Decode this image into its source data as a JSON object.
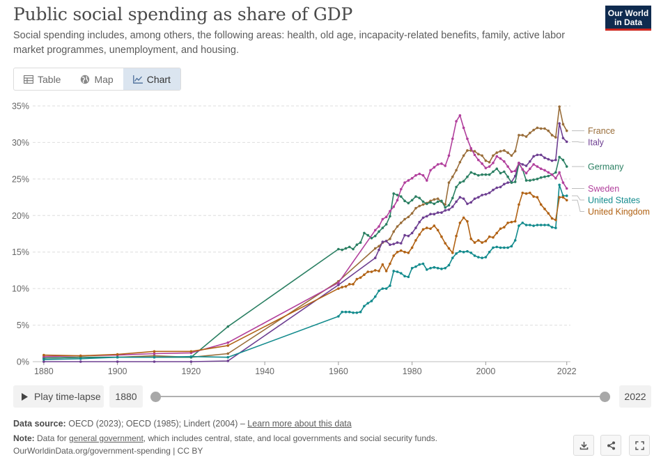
{
  "header": {
    "title": "Public social spending as share of GDP",
    "subtitle": "Social spending includes, among others, the following areas: health, old age, incapacity-related benefits, family, active labor market programmes, unemployment, and housing.",
    "logo_line1": "Our World",
    "logo_line2": "in Data"
  },
  "tabs": [
    {
      "label": "Table",
      "icon": "table-icon",
      "active": false
    },
    {
      "label": "Map",
      "icon": "globe-icon",
      "active": false
    },
    {
      "label": "Chart",
      "icon": "line-chart-icon",
      "active": true
    }
  ],
  "controls": {
    "play_label": "Play time-lapse",
    "start_year": "1880",
    "end_year": "2022"
  },
  "footer": {
    "source_prefix": "Data source:",
    "source_text": "OECD (2023); OECD (1985); Lindert (2004) –",
    "source_link": "Learn more about this data",
    "note_prefix": "Note:",
    "note_text_1": "Data for",
    "note_link": "general government",
    "note_text_2": ", which includes central, state, and local governments and social security funds.",
    "url_line": "OurWorldinData.org/government-spending | CC BY"
  },
  "buttons": {
    "download_icon": "download-icon",
    "share_icon": "share-icon",
    "fullscreen_icon": "fullscreen-icon"
  },
  "chart_data": {
    "type": "line",
    "title": "Public social spending as share of GDP",
    "xlim": [
      1877,
      2023
    ],
    "ylim": [
      0,
      35
    ],
    "xticks": [
      1880,
      1900,
      1920,
      1940,
      1960,
      1980,
      2000,
      2022
    ],
    "yticks": [
      0,
      5,
      10,
      15,
      20,
      25,
      30,
      35
    ],
    "ytick_labels": [
      "0%",
      "5%",
      "10%",
      "15%",
      "20%",
      "25%",
      "30%",
      "35%"
    ],
    "grid": "horizontal dashed",
    "legend_placement": "right, end-labels",
    "series": [
      {
        "name": "France",
        "color": "#996d39",
        "x": [
          1880,
          1890,
          1900,
          1910,
          1920,
          1930,
          1960,
          1970,
          1971,
          1972,
          1973,
          1974,
          1975,
          1976,
          1977,
          1978,
          1979,
          1980,
          1981,
          1982,
          1983,
          1984,
          1985,
          1986,
          1987,
          1988,
          1989,
          1990,
          1991,
          1992,
          1993,
          1994,
          1995,
          1996,
          1997,
          1998,
          1999,
          2000,
          2001,
          2002,
          2003,
          2004,
          2005,
          2006,
          2007,
          2008,
          2009,
          2010,
          2011,
          2012,
          2013,
          2014,
          2015,
          2016,
          2017,
          2018,
          2019,
          2020,
          2021,
          2022
        ],
        "y": [
          0.5,
          0.6,
          0.6,
          0.8,
          0.6,
          1.1,
          11.0,
          15.5,
          15.8,
          16.3,
          16.5,
          16.8,
          17.8,
          18.5,
          19.0,
          19.5,
          19.8,
          20.3,
          21.0,
          21.3,
          21.5,
          21.7,
          22.0,
          22.2,
          22.3,
          21.9,
          21.5,
          24.5,
          25.3,
          26.2,
          27.3,
          28.2,
          28.9,
          28.9,
          28.8,
          28.4,
          28.2,
          27.5,
          27.3,
          28.2,
          28.6,
          28.8,
          28.9,
          28.6,
          28.2,
          28.8,
          31.0,
          31.0,
          30.8,
          31.3,
          31.7,
          32.0,
          31.9,
          31.9,
          31.6,
          31.0,
          30.7,
          34.9,
          32.5,
          31.6
        ]
      },
      {
        "name": "Italy",
        "color": "#6d3e91",
        "x": [
          1880,
          1890,
          1900,
          1910,
          1920,
          1930,
          1960,
          1970,
          1971,
          1972,
          1973,
          1974,
          1975,
          1976,
          1977,
          1978,
          1979,
          1980,
          1981,
          1982,
          1983,
          1984,
          1985,
          1986,
          1987,
          1988,
          1989,
          1990,
          1991,
          1992,
          1993,
          1994,
          1995,
          1996,
          1997,
          1998,
          1999,
          2000,
          2001,
          2002,
          2003,
          2004,
          2005,
          2006,
          2007,
          2008,
          2009,
          2010,
          2011,
          2012,
          2013,
          2014,
          2015,
          2016,
          2017,
          2018,
          2019,
          2020,
          2021,
          2022
        ],
        "y": [
          0.0,
          0.0,
          0.0,
          0.0,
          0.0,
          0.1,
          10.5,
          14.2,
          15.3,
          16.4,
          16.5,
          16.0,
          16.1,
          16.3,
          16.2,
          17.3,
          17.2,
          17.6,
          18.3,
          19.1,
          19.7,
          19.9,
          20.2,
          20.2,
          20.4,
          20.4,
          20.7,
          20.8,
          21.2,
          21.9,
          22.5,
          22.3,
          21.6,
          21.8,
          22.3,
          22.5,
          22.8,
          22.9,
          23.1,
          23.5,
          23.8,
          23.9,
          24.3,
          24.5,
          24.6,
          25.4,
          27.2,
          27.0,
          26.8,
          27.4,
          28.1,
          28.3,
          28.3,
          27.9,
          27.7,
          27.5,
          27.6,
          32.6,
          30.6,
          30.1
        ]
      },
      {
        "name": "Germany",
        "color": "#2a7f62",
        "x": [
          1880,
          1890,
          1900,
          1910,
          1920,
          1930,
          1960,
          1961,
          1962,
          1963,
          1964,
          1965,
          1966,
          1967,
          1968,
          1969,
          1970,
          1971,
          1972,
          1973,
          1974,
          1975,
          1976,
          1977,
          1978,
          1979,
          1980,
          1981,
          1982,
          1983,
          1984,
          1985,
          1986,
          1987,
          1988,
          1989,
          1990,
          1991,
          1992,
          1993,
          1994,
          1995,
          1996,
          1997,
          1998,
          1999,
          2000,
          2001,
          2002,
          2003,
          2004,
          2005,
          2006,
          2007,
          2008,
          2009,
          2010,
          2011,
          2012,
          2013,
          2014,
          2015,
          2016,
          2017,
          2018,
          2019,
          2020,
          2021,
          2022
        ],
        "y": [
          0.5,
          0.6,
          0.6,
          0.6,
          0.6,
          4.8,
          15.4,
          15.3,
          15.5,
          15.7,
          15.4,
          16.0,
          16.3,
          17.6,
          17.3,
          16.9,
          17.2,
          17.8,
          18.3,
          18.8,
          19.9,
          23.0,
          22.8,
          22.6,
          22.0,
          21.7,
          22.1,
          22.6,
          22.4,
          21.9,
          21.6,
          21.8,
          21.6,
          21.9,
          22.0,
          21.1,
          21.4,
          22.4,
          23.9,
          24.5,
          24.7,
          25.3,
          25.9,
          25.7,
          25.5,
          25.6,
          25.6,
          25.6,
          26.0,
          26.4,
          25.8,
          26.0,
          25.3,
          24.5,
          24.6,
          27.1,
          26.3,
          24.8,
          24.8,
          24.9,
          25.0,
          25.2,
          25.3,
          25.4,
          25.6,
          25.9,
          28.0,
          27.6,
          26.7
        ]
      },
      {
        "name": "Sweden",
        "color": "#b13f9c",
        "x": [
          1880,
          1890,
          1900,
          1910,
          1920,
          1930,
          1960,
          1970,
          1971,
          1972,
          1973,
          1974,
          1975,
          1976,
          1977,
          1978,
          1979,
          1980,
          1981,
          1982,
          1983,
          1984,
          1985,
          1986,
          1987,
          1988,
          1989,
          1990,
          1991,
          1992,
          1993,
          1994,
          1995,
          1996,
          1997,
          1998,
          1999,
          2000,
          2001,
          2002,
          2003,
          2004,
          2005,
          2006,
          2007,
          2008,
          2009,
          2010,
          2011,
          2012,
          2013,
          2014,
          2015,
          2016,
          2017,
          2018,
          2019,
          2020,
          2021,
          2022
        ],
        "y": [
          0.7,
          0.8,
          0.9,
          1.1,
          1.2,
          2.6,
          10.8,
          18.0,
          18.5,
          19.5,
          19.8,
          20.6,
          21.2,
          22.1,
          23.6,
          24.5,
          24.8,
          25.1,
          25.5,
          25.7,
          25.5,
          24.8,
          26.2,
          26.6,
          27.0,
          27.1,
          26.8,
          28.2,
          30.5,
          32.9,
          33.7,
          32.0,
          30.5,
          29.2,
          28.3,
          27.6,
          27.1,
          26.5,
          26.7,
          27.2,
          28.1,
          27.8,
          27.4,
          26.7,
          26.0,
          26.1,
          27.2,
          26.3,
          25.8,
          26.4,
          27.0,
          26.7,
          26.4,
          26.2,
          25.9,
          25.6,
          25.1,
          25.9,
          24.5,
          23.7
        ]
      },
      {
        "name": "United States",
        "color": "#138b8d",
        "x": [
          1880,
          1890,
          1900,
          1910,
          1920,
          1930,
          1960,
          1961,
          1962,
          1963,
          1964,
          1965,
          1966,
          1967,
          1968,
          1969,
          1970,
          1971,
          1972,
          1973,
          1974,
          1975,
          1976,
          1977,
          1978,
          1979,
          1980,
          1981,
          1982,
          1983,
          1984,
          1985,
          1986,
          1987,
          1988,
          1989,
          1990,
          1991,
          1992,
          1993,
          1994,
          1995,
          1996,
          1997,
          1998,
          1999,
          2000,
          2001,
          2002,
          2003,
          2004,
          2005,
          2006,
          2007,
          2008,
          2009,
          2010,
          2011,
          2012,
          2013,
          2014,
          2015,
          2016,
          2017,
          2018,
          2019,
          2020,
          2021,
          2022
        ],
        "y": [
          0.3,
          0.4,
          0.6,
          0.6,
          0.7,
          0.6,
          6.2,
          6.8,
          6.8,
          6.8,
          6.7,
          6.7,
          6.8,
          7.6,
          8.0,
          8.3,
          8.9,
          9.7,
          10.0,
          10.0,
          10.4,
          12.4,
          12.3,
          12.1,
          11.7,
          11.6,
          12.8,
          13.0,
          13.3,
          13.4,
          12.6,
          12.8,
          12.9,
          12.8,
          12.7,
          12.8,
          13.2,
          14.2,
          14.8,
          15.1,
          15.0,
          15.1,
          14.9,
          14.5,
          14.3,
          14.2,
          14.3,
          15.0,
          15.6,
          15.7,
          15.6,
          15.6,
          15.6,
          15.8,
          16.6,
          18.6,
          19.0,
          18.7,
          18.7,
          18.6,
          18.7,
          18.7,
          18.7,
          18.7,
          18.4,
          18.3,
          24.2,
          22.7,
          22.7
        ]
      },
      {
        "name": "United Kingdom",
        "color": "#b16214",
        "x": [
          1880,
          1890,
          1900,
          1910,
          1920,
          1930,
          1960,
          1961,
          1962,
          1963,
          1964,
          1965,
          1966,
          1967,
          1968,
          1969,
          1970,
          1971,
          1972,
          1973,
          1974,
          1975,
          1976,
          1977,
          1978,
          1979,
          1980,
          1981,
          1982,
          1983,
          1984,
          1985,
          1986,
          1987,
          1988,
          1989,
          1990,
          1991,
          1992,
          1993,
          1994,
          1995,
          1996,
          1997,
          1998,
          1999,
          2000,
          2001,
          2002,
          2003,
          2004,
          2005,
          2006,
          2007,
          2008,
          2009,
          2010,
          2011,
          2012,
          2013,
          2014,
          2015,
          2016,
          2017,
          2018,
          2019,
          2020,
          2021,
          2022
        ],
        "y": [
          0.9,
          0.8,
          1.0,
          1.4,
          1.4,
          2.2,
          10.0,
          10.2,
          10.3,
          10.6,
          10.6,
          11.3,
          11.5,
          11.9,
          12.3,
          12.3,
          12.5,
          12.4,
          13.3,
          12.4,
          13.4,
          14.5,
          15.0,
          15.2,
          15.0,
          14.9,
          15.6,
          16.6,
          17.4,
          18.1,
          18.3,
          18.2,
          18.6,
          18.0,
          17.1,
          16.2,
          15.5,
          14.9,
          17.2,
          19.0,
          19.7,
          19.2,
          16.8,
          16.3,
          16.6,
          16.3,
          16.5,
          17.1,
          17.0,
          17.6,
          18.2,
          18.4,
          19.0,
          19.1,
          19.2,
          21.5,
          23.1,
          23.0,
          23.1,
          22.6,
          22.5,
          21.5,
          20.9,
          20.3,
          19.6,
          19.4,
          22.5,
          22.5,
          22.1
        ]
      }
    ]
  }
}
